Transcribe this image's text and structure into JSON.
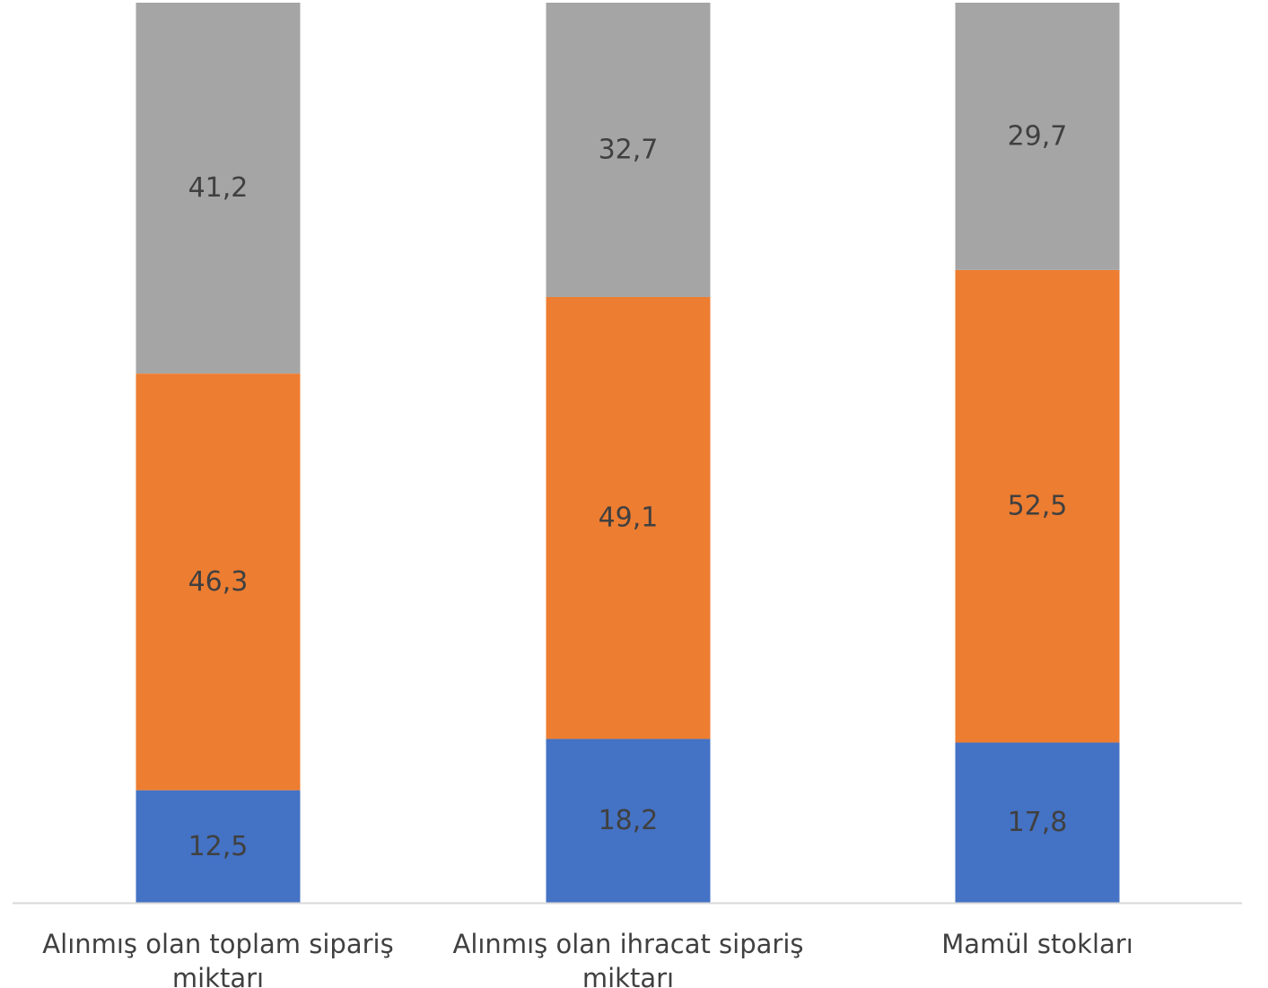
{
  "chart_data": {
    "type": "bar",
    "stacked": true,
    "orientation": "vertical",
    "categories": [
      [
        "Alınmış olan toplam sipariş",
        "miktarı"
      ],
      [
        "Alınmış olan ihracat sipariş",
        "miktarı"
      ],
      [
        "Mamül stokları"
      ]
    ],
    "series": [
      {
        "values": [
          12.5,
          18.2,
          17.8
        ],
        "labels": [
          "12,5",
          "18,2",
          "17,8"
        ],
        "color": "#4472C4"
      },
      {
        "values": [
          46.3,
          49.1,
          52.5
        ],
        "labels": [
          "46,3",
          "49,1",
          "52,5"
        ],
        "color": "#ED7D31"
      },
      {
        "values": [
          41.2,
          32.7,
          29.7
        ],
        "labels": [
          "41,2",
          "32,7",
          "29,7"
        ],
        "color": "#A5A5A5"
      }
    ],
    "ylim": [
      0,
      100
    ],
    "grid": false,
    "legend": "none",
    "axis_color": "#D9D9D9"
  }
}
